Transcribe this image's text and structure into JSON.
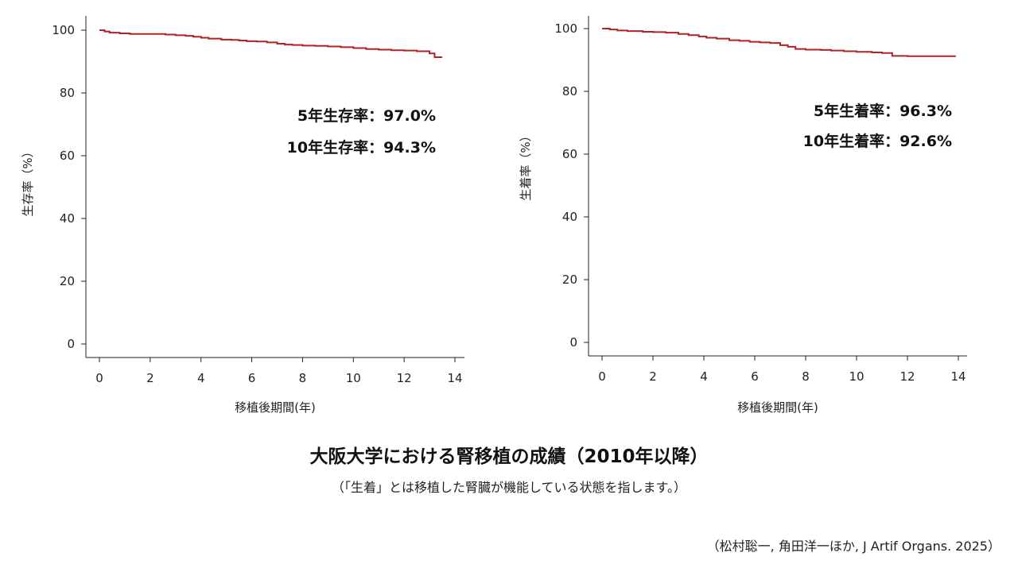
{
  "caption": {
    "title": "大阪大学における腎移植の成績（2010年以降）",
    "subtitle": "（「生着」とは移植した腎臓が機能している状態を指します。）",
    "source": "（松村聡一, 角田洋一ほか, J Artif Organs. 2025）"
  },
  "chart_data": [
    {
      "type": "line",
      "xlabel": "移植後期間(年)",
      "ylabel": "生存率（%）",
      "xlim": [
        0,
        14
      ],
      "ylim": [
        0,
        100
      ],
      "xticks": [
        0,
        2,
        4,
        6,
        8,
        10,
        12,
        14
      ],
      "yticks": [
        0,
        20,
        40,
        60,
        80,
        100
      ],
      "step": true,
      "color": "#b22222",
      "annotations": [
        "5年生存率：97.0%",
        "10年生存率：94.3%"
      ],
      "series": [
        {
          "x": [
            0,
            0.2,
            0.4,
            0.8,
            1.2,
            2.0,
            2.6,
            3.0,
            3.4,
            3.7,
            4.0,
            4.3,
            4.8,
            5.2,
            5.5,
            5.8,
            6.2,
            6.6,
            7.0,
            7.3,
            7.6,
            8.0,
            8.5,
            9.0,
            9.5,
            10.0,
            10.5,
            11.0,
            11.5,
            12.0,
            12.5,
            13.0,
            13.2,
            13.5
          ],
          "y": [
            100,
            99.6,
            99.2,
            99.0,
            98.8,
            98.8,
            98.6,
            98.4,
            98.2,
            97.9,
            97.6,
            97.3,
            97.0,
            96.9,
            96.7,
            96.5,
            96.4,
            96.1,
            95.7,
            95.4,
            95.3,
            95.1,
            95.0,
            94.8,
            94.6,
            94.3,
            94.0,
            93.8,
            93.6,
            93.5,
            93.3,
            92.6,
            91.4,
            91.4
          ]
        }
      ]
    },
    {
      "type": "line",
      "xlabel": "移植後期間(年)",
      "ylabel": "生着率（%）",
      "xlim": [
        0,
        14
      ],
      "ylim": [
        0,
        100
      ],
      "xticks": [
        0,
        2,
        4,
        6,
        8,
        10,
        12,
        14
      ],
      "yticks": [
        0,
        20,
        40,
        60,
        80,
        100
      ],
      "step": true,
      "color": "#b22222",
      "annotations": [
        "5年生着率：96.3%",
        "10年生着率：92.6%"
      ],
      "series": [
        {
          "x": [
            0,
            0.3,
            0.6,
            1.0,
            1.6,
            2.0,
            2.5,
            3.0,
            3.4,
            3.8,
            4.1,
            4.5,
            5.0,
            5.4,
            5.8,
            6.2,
            6.6,
            7.0,
            7.3,
            7.6,
            8.0,
            8.6,
            9.0,
            9.5,
            10.0,
            10.6,
            11.0,
            11.4,
            12.0,
            12.5,
            13.0,
            13.9
          ],
          "y": [
            100,
            99.7,
            99.4,
            99.2,
            99.0,
            98.9,
            98.7,
            98.3,
            97.9,
            97.5,
            97.1,
            96.8,
            96.3,
            96.1,
            95.8,
            95.6,
            95.4,
            94.7,
            94.2,
            93.5,
            93.3,
            93.2,
            93.0,
            92.8,
            92.6,
            92.4,
            92.2,
            91.3,
            91.2,
            91.2,
            91.2,
            91.2
          ]
        }
      ]
    }
  ]
}
